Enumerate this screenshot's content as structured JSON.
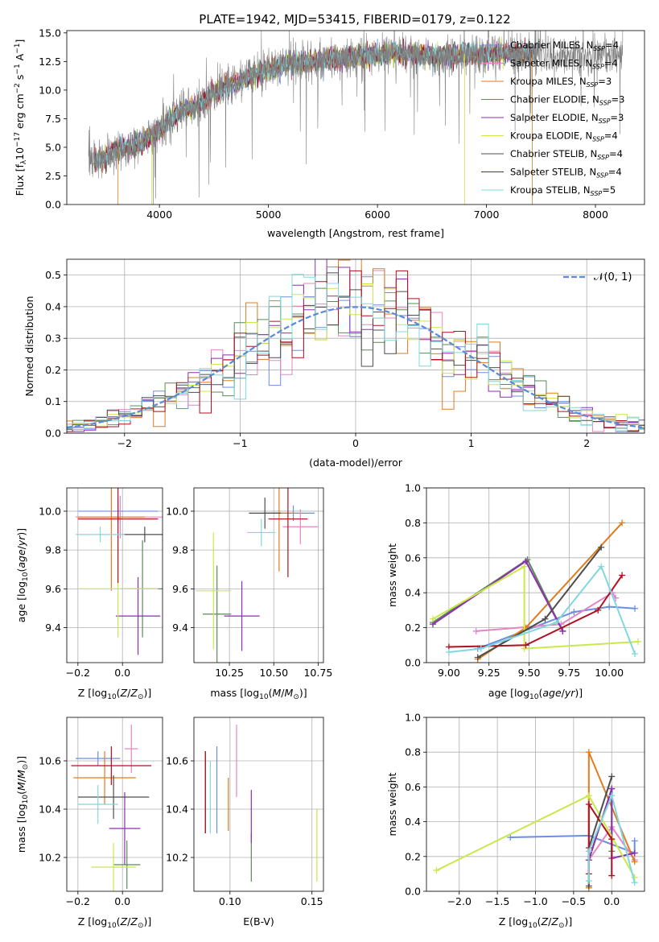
{
  "figure_title": "PLATE=1942, MJD=53415, FIBERID=0179, z=0.122",
  "colors": {
    "Chabrier MILES": "#6a8fe0",
    "Salpeter MILES": "#e683c4",
    "Kroupa MILES": "#e07b1e",
    "Chabrier ELODIE": "#5a8a5a",
    "Salpeter ELODIE": "#8e2fb0",
    "Kroupa ELODIE": "#c9e84a",
    "Chabrier STELIB": "#4d4d4d",
    "Salpeter STELIB": "#b01020",
    "Kroupa STELIB": "#7fd8e0"
  },
  "chart_data": [
    {
      "id": "spectrum",
      "type": "line",
      "title": "PLATE=1942, MJD=53415, FIBERID=0179, z=0.122",
      "xlabel": "wavelength [Angstrom, rest frame]",
      "ylabel": "Flux [f_λ 10^-17 erg cm^-2 s^-1 A^-1]",
      "xlim": [
        3150,
        8450
      ],
      "ylim": [
        0,
        15.2
      ],
      "xticks": [
        4000,
        5000,
        6000,
        7000,
        8000
      ],
      "yticks": [
        "0.0",
        "2.5",
        "5.0",
        "7.5",
        "10.0",
        "12.5",
        "15.0"
      ],
      "grid": false,
      "legend_position": "top-right",
      "data_color": "#808080",
      "data_anchor_x": [
        3400,
        3500,
        3600,
        3700,
        3800,
        3900,
        4000,
        4100,
        4200,
        4300,
        4400,
        4500,
        4600,
        4700,
        4800,
        4900,
        5000,
        5200,
        5400,
        5600,
        5800,
        6000,
        6200,
        6400,
        6600,
        6800,
        7000,
        7200,
        7400,
        7600,
        7800,
        8000,
        8200
      ],
      "data_anchor_y": [
        3.9,
        4.1,
        4.8,
        5.0,
        5.2,
        5.9,
        6.4,
        7.4,
        8.2,
        8.4,
        8.9,
        9.8,
        10.3,
        10.5,
        11.0,
        11.4,
        11.8,
        12.3,
        12.5,
        12.8,
        12.9,
        13.1,
        13.2,
        13.1,
        12.9,
        13.2,
        13.0,
        13.2,
        13.2,
        13.1,
        13.0,
        13.1,
        13.3
      ],
      "model_x_range": [
        3400,
        7450
      ],
      "data_x_range": [
        3350,
        8250
      ],
      "legend": [
        "Chabrier MILES, N_SSP=4",
        "Salpeter MILES, N_SSP=4",
        "Kroupa MILES, N_SSP=3",
        "Chabrier ELODIE, N_SSP=3",
        "Salpeter ELODIE, N_SSP=3",
        "Kroupa ELODIE, N_SSP=4",
        "Chabrier STELIB, N_SSP=4",
        "Salpeter STELIB, N_SSP=4",
        "Kroupa STELIB, N_SSP=5"
      ]
    },
    {
      "id": "residuals",
      "type": "histogram",
      "xlabel": "(data-model)/error",
      "ylabel": "Normed distribution",
      "xlim": [
        -2.5,
        2.5
      ],
      "ylim": [
        0,
        0.55
      ],
      "xticks": [
        -2,
        -1,
        0,
        1,
        2
      ],
      "xtick_labels": [
        "−2",
        "−1",
        "0",
        "1",
        "2"
      ],
      "yticks": [
        "0.0",
        "0.1",
        "0.2",
        "0.3",
        "0.4",
        "0.5"
      ],
      "grid": true,
      "legend": [
        "𝒩(0, 1)"
      ],
      "legend_position": "top-right",
      "bin_width": 0.1,
      "reference_curve": "normal(0,1)"
    },
    {
      "id": "age_vs_Z",
      "type": "errorbar",
      "xlabel": "Z [log10(Z/Z⊙)]",
      "ylabel": "age [log10(age/yr)]",
      "xlim": [
        -0.25,
        0.18
      ],
      "ylim": [
        9.22,
        10.12
      ],
      "xticks": [
        -0.2,
        0.0
      ],
      "xtick_labels": [
        "−0.2",
        "0.0"
      ],
      "yticks": [
        9.4,
        9.6,
        9.8,
        10.0
      ],
      "ytick_labels": [
        "9.4",
        "9.6",
        "9.8",
        "10.0"
      ],
      "grid": true,
      "points": [
        {
          "model": "Chabrier MILES",
          "x": -0.02,
          "xerr": 0.18,
          "y": 10.0,
          "yerr": 0.06
        },
        {
          "model": "Salpeter MILES",
          "x": -0.01,
          "xerr": 0.2,
          "y": 9.97,
          "yerr": 0.11
        },
        {
          "model": "Kroupa MILES",
          "x": -0.05,
          "xerr": 0.15,
          "y": 9.97,
          "yerr": 0.38
        },
        {
          "model": "Chabrier ELODIE",
          "x": 0.09,
          "xerr": 0.1,
          "y": 9.6,
          "yerr": 0.25
        },
        {
          "model": "Salpeter ELODIE",
          "x": 0.07,
          "xerr": 0.1,
          "y": 9.46,
          "yerr": 0.2
        },
        {
          "model": "Kroupa ELODIE",
          "x": -0.02,
          "xerr": 0.18,
          "y": 9.6,
          "yerr": 0.25
        },
        {
          "model": "Chabrier STELIB",
          "x": 0.1,
          "xerr": 0.1,
          "y": 9.88,
          "yerr": 0.04
        },
        {
          "model": "Salpeter STELIB",
          "x": -0.02,
          "xerr": 0.18,
          "y": 9.96,
          "yerr": 0.33
        },
        {
          "model": "Kroupa STELIB",
          "x": -0.1,
          "xerr": 0.11,
          "y": 9.88,
          "yerr": 0.04
        }
      ]
    },
    {
      "id": "age_vs_mass",
      "type": "errorbar",
      "xlabel": "mass [log10(M/M⊙)]",
      "xlim": [
        10.05,
        10.78
      ],
      "ylim": [
        9.22,
        10.12
      ],
      "xticks": [
        10.25,
        10.5,
        10.75
      ],
      "xtick_labels": [
        "10.25",
        "10.50",
        "10.75"
      ],
      "yticks": [
        9.4,
        9.6,
        9.8,
        10.0
      ],
      "ytick_labels": [
        "9.4",
        "9.6",
        "9.8",
        "10.0"
      ],
      "grid": true,
      "points": [
        {
          "model": "Chabrier MILES",
          "x": 10.61,
          "y": 9.99,
          "xerr": 0.12,
          "yerr": 0.04
        },
        {
          "model": "Salpeter MILES",
          "x": 10.65,
          "y": 9.92,
          "xerr": 0.1,
          "yerr": 0.09
        },
        {
          "model": "Kroupa MILES",
          "x": 10.53,
          "y": 9.99,
          "xerr": 0.09,
          "yerr": 0.3
        },
        {
          "model": "Chabrier ELODIE",
          "x": 10.18,
          "y": 9.47,
          "xerr": 0.08,
          "yerr": 0.25
        },
        {
          "model": "Salpeter ELODIE",
          "x": 10.32,
          "y": 9.46,
          "xerr": 0.1,
          "yerr": 0.18
        },
        {
          "model": "Kroupa ELODIE",
          "x": 10.16,
          "y": 9.59,
          "xerr": 0.1,
          "yerr": 0.3
        },
        {
          "model": "Chabrier STELIB",
          "x": 10.45,
          "y": 9.99,
          "xerr": 0.09,
          "yerr": 0.08
        },
        {
          "model": "Salpeter STELIB",
          "x": 10.58,
          "y": 9.96,
          "xerr": 0.11,
          "yerr": 0.3
        },
        {
          "model": "Kroupa STELIB",
          "x": 10.43,
          "y": 9.89,
          "xerr": 0.08,
          "yerr": 0.07
        }
      ]
    },
    {
      "id": "weight_vs_age",
      "type": "line",
      "xlabel": "age [log10(age/yr)]",
      "ylabel": "mass weight",
      "xlim": [
        8.86,
        10.22
      ],
      "ylim": [
        0,
        1.0
      ],
      "xticks": [
        9.0,
        9.25,
        9.5,
        9.75,
        10.0
      ],
      "xtick_labels": [
        "9.00",
        "9.25",
        "9.50",
        "9.75",
        "10.00"
      ],
      "yticks": [
        0.0,
        0.2,
        0.4,
        0.6,
        0.8,
        1.0
      ],
      "ytick_labels": [
        "0.0",
        "0.2",
        "0.4",
        "0.6",
        "0.8",
        "1.0"
      ],
      "grid": true,
      "series": [
        {
          "model": "Chabrier MILES",
          "x": [
            9.18,
            9.78,
            10.0,
            10.16
          ],
          "y": [
            0.08,
            0.29,
            0.32,
            0.31
          ]
        },
        {
          "model": "Salpeter MILES",
          "x": [
            9.17,
            9.7,
            10.02,
            10.04
          ],
          "y": [
            0.18,
            0.22,
            0.4,
            0.37
          ]
        },
        {
          "model": "Kroupa MILES",
          "x": [
            9.18,
            9.48,
            10.08
          ],
          "y": [
            0.02,
            0.2,
            0.8
          ]
        },
        {
          "model": "Chabrier ELODIE",
          "x": [
            8.9,
            9.49,
            9.71
          ],
          "y": [
            0.23,
            0.59,
            0.18
          ]
        },
        {
          "model": "Salpeter ELODIE",
          "x": [
            8.9,
            9.48,
            9.71
          ],
          "y": [
            0.22,
            0.58,
            0.18
          ]
        },
        {
          "model": "Kroupa ELODIE",
          "x": [
            8.9,
            9.47,
            9.47,
            10.18
          ],
          "y": [
            0.25,
            0.55,
            0.08,
            0.12
          ]
        },
        {
          "model": "Chabrier STELIB",
          "x": [
            9.18,
            9.6,
            9.95
          ],
          "y": [
            0.03,
            0.25,
            0.66
          ]
        },
        {
          "model": "Salpeter STELIB",
          "x": [
            9.0,
            9.48,
            9.93,
            10.08
          ],
          "y": [
            0.09,
            0.1,
            0.3,
            0.5
          ]
        },
        {
          "model": "Kroupa STELIB",
          "x": [
            9.0,
            9.2,
            9.67,
            9.95,
            10.16
          ],
          "y": [
            0.06,
            0.08,
            0.23,
            0.55,
            0.05
          ]
        }
      ]
    },
    {
      "id": "mass_vs_Z",
      "type": "errorbar",
      "xlabel": "Z [log10(Z/Z⊙)]",
      "ylabel": "mass [log10(M/M⊙)]",
      "xlim": [
        -0.25,
        0.18
      ],
      "ylim": [
        10.06,
        10.78
      ],
      "xticks": [
        -0.2,
        0.0
      ],
      "xtick_labels": [
        "−0.2",
        "0.0"
      ],
      "yticks": [
        10.2,
        10.4,
        10.6
      ],
      "ytick_labels": [
        "10.2",
        "10.4",
        "10.6"
      ],
      "grid": true,
      "points": [
        {
          "model": "Chabrier MILES",
          "x": -0.11,
          "xerr": 0.1,
          "y": 10.61,
          "yerr": 0.03
        },
        {
          "model": "Salpeter MILES",
          "x": 0.04,
          "xerr": 0.03,
          "y": 10.65,
          "yerr": 0.1
        },
        {
          "model": "Kroupa MILES",
          "x": -0.08,
          "xerr": 0.14,
          "y": 10.53,
          "yerr": 0.11
        },
        {
          "model": "Chabrier ELODIE",
          "x": 0.02,
          "xerr": 0.06,
          "y": 10.17,
          "yerr": 0.1
        },
        {
          "model": "Salpeter ELODIE",
          "x": 0.01,
          "xerr": 0.07,
          "y": 10.32,
          "yerr": 0.15
        },
        {
          "model": "Kroupa ELODIE",
          "x": -0.04,
          "xerr": 0.1,
          "y": 10.16,
          "yerr": 0.1
        },
        {
          "model": "Chabrier STELIB",
          "x": -0.04,
          "xerr": 0.16,
          "y": 10.45,
          "yerr": 0.09
        },
        {
          "model": "Salpeter STELIB",
          "x": -0.05,
          "xerr": 0.18,
          "y": 10.58,
          "yerr": 0.08
        },
        {
          "model": "Kroupa STELIB",
          "x": -0.11,
          "xerr": 0.09,
          "y": 10.42,
          "yerr": 0.08
        }
      ]
    },
    {
      "id": "mass_vs_ebv",
      "type": "errorbar",
      "xlabel": "E(B-V)",
      "xlim": [
        0.078,
        0.157
      ],
      "ylim": [
        10.06,
        10.78
      ],
      "xticks": [
        0.1,
        0.15
      ],
      "xtick_labels": [
        "0.10",
        "0.15"
      ],
      "yticks": [
        10.2,
        10.4,
        10.6
      ],
      "ytick_labels": [
        "10.2",
        "10.4",
        "10.6"
      ],
      "grid": true,
      "points": [
        {
          "model": "Chabrier MILES",
          "x": 0.092,
          "y": 10.48,
          "yerr": 0.18
        },
        {
          "model": "Salpeter MILES",
          "x": 0.104,
          "y": 10.6,
          "yerr": 0.15
        },
        {
          "model": "Kroupa MILES",
          "x": 0.099,
          "y": 10.42,
          "yerr": 0.11
        },
        {
          "model": "Chabrier ELODIE",
          "x": 0.113,
          "y": 10.2,
          "yerr": 0.1
        },
        {
          "model": "Salpeter ELODIE",
          "x": 0.113,
          "y": 10.37,
          "yerr": 0.11
        },
        {
          "model": "Kroupa ELODIE",
          "x": 0.153,
          "y": 10.25,
          "yerr": 0.15
        },
        {
          "model": "Chabrier STELIB",
          "x": 0.085,
          "y": 10.47,
          "yerr": 0.17
        },
        {
          "model": "Salpeter STELIB",
          "x": 0.085,
          "y": 10.47,
          "yerr": 0.17
        },
        {
          "model": "Kroupa STELIB",
          "x": 0.088,
          "y": 10.45,
          "yerr": 0.15
        }
      ]
    },
    {
      "id": "weight_vs_Z",
      "type": "line",
      "xlabel": "Z [log10(Z/Z⊙)]",
      "ylabel": "mass weight",
      "xlim": [
        -2.43,
        0.43
      ],
      "ylim": [
        0,
        1.0
      ],
      "xticks": [
        -2.0,
        -1.5,
        -1.0,
        -0.5,
        0.0
      ],
      "xtick_labels": [
        "−2.0",
        "−1.5",
        "−1.0",
        "−0.5",
        "0.0"
      ],
      "yticks": [
        0.0,
        0.2,
        0.4,
        0.6,
        0.8,
        1.0
      ],
      "ytick_labels": [
        "0.0",
        "0.2",
        "0.4",
        "0.6",
        "0.8",
        "1.0"
      ],
      "grid": true,
      "series": [
        {
          "model": "Chabrier MILES",
          "x": [
            -1.33,
            -0.3,
            0.3,
            0.3
          ],
          "y": [
            0.31,
            0.32,
            0.22,
            0.29
          ]
        },
        {
          "model": "Salpeter MILES",
          "x": [
            -0.3,
            0.0,
            0.3
          ],
          "y": [
            0.18,
            0.37,
            0.18
          ]
        },
        {
          "model": "Kroupa MILES",
          "x": [
            -0.3,
            -0.3,
            0.3
          ],
          "y": [
            0.02,
            0.8,
            0.17
          ]
        },
        {
          "model": "Chabrier ELODIE",
          "x": [
            -0.3,
            0.0,
            0.0
          ],
          "y": [
            0.18,
            0.59,
            0.23
          ]
        },
        {
          "model": "Salpeter ELODIE",
          "x": [
            -0.3,
            0.0,
            0.0,
            0.3
          ],
          "y": [
            0.18,
            0.59,
            0.19,
            0.22
          ]
        },
        {
          "model": "Kroupa ELODIE",
          "x": [
            -2.3,
            -0.3,
            0.3
          ],
          "y": [
            0.12,
            0.55,
            0.08
          ]
        },
        {
          "model": "Chabrier STELIB",
          "x": [
            -0.3,
            -0.3,
            0.0
          ],
          "y": [
            0.03,
            0.25,
            0.66
          ]
        },
        {
          "model": "Salpeter STELIB",
          "x": [
            -0.3,
            -0.3,
            0.0,
            0.0
          ],
          "y": [
            0.1,
            0.5,
            0.3,
            0.09
          ]
        },
        {
          "model": "Kroupa STELIB",
          "x": [
            -0.3,
            -0.3,
            0.0,
            0.3
          ],
          "y": [
            0.06,
            0.23,
            0.55,
            0.05
          ]
        }
      ]
    }
  ]
}
